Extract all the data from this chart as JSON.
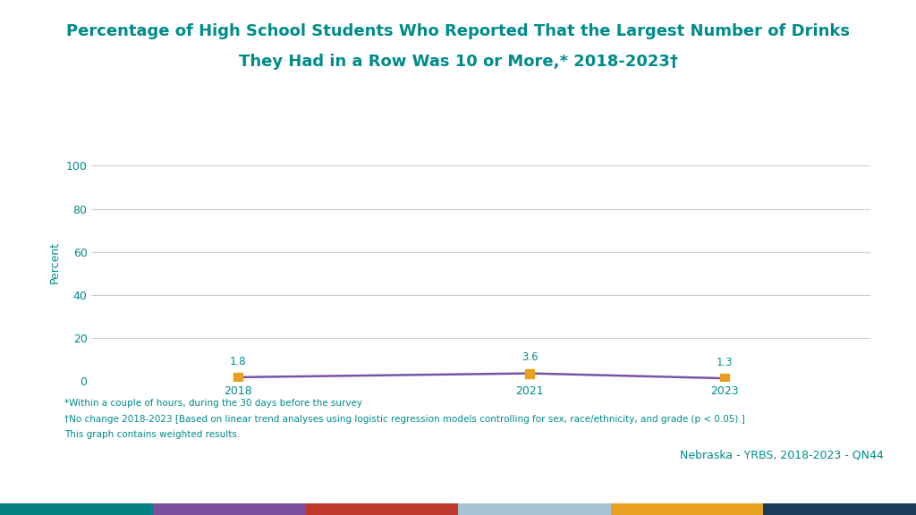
{
  "title_line1": "Percentage of High School Students Who Reported That the Largest Number of Drinks",
  "title_line2": "They Had in a Row Was 10 or More,* 2018-2023†",
  "years": [
    2018,
    2021,
    2023
  ],
  "values": [
    1.8,
    3.6,
    1.3
  ],
  "line_color": "#7B52A6",
  "marker_color": "#E8A020",
  "marker_style": "s",
  "marker_size": 7,
  "line_width": 1.8,
  "title_color": "#008B8B",
  "axis_color": "#008B8B",
  "tick_color": "#008B8B",
  "ylabel": "Percent",
  "ylim": [
    0,
    110
  ],
  "yticks": [
    0,
    20,
    40,
    60,
    80,
    100
  ],
  "grid_color": "#d0d0d0",
  "bg_color": "#ffffff",
  "plot_bg_color": "#ffffff",
  "footnote1": "*Within a couple of hours, during the 30 days before the survey",
  "footnote2": "†No change 2018-2023 [Based on linear trend analyses using logistic regression models controlling for sex, race/ethnicity, and grade (p < 0.05).]",
  "footnote3": "This graph contains weighted results.",
  "source_text": "Nebraska - YRBS, 2018-2023 - QN44",
  "source_color": "#008B8B",
  "bottom_bar_colors": [
    "#008080",
    "#7B4F9E",
    "#C0392B",
    "#A8C4D4",
    "#E8A020",
    "#1A3A5C"
  ],
  "data_label_color": "#008B8B",
  "data_label_fontsize": 8.5,
  "title_fontsize": 13
}
